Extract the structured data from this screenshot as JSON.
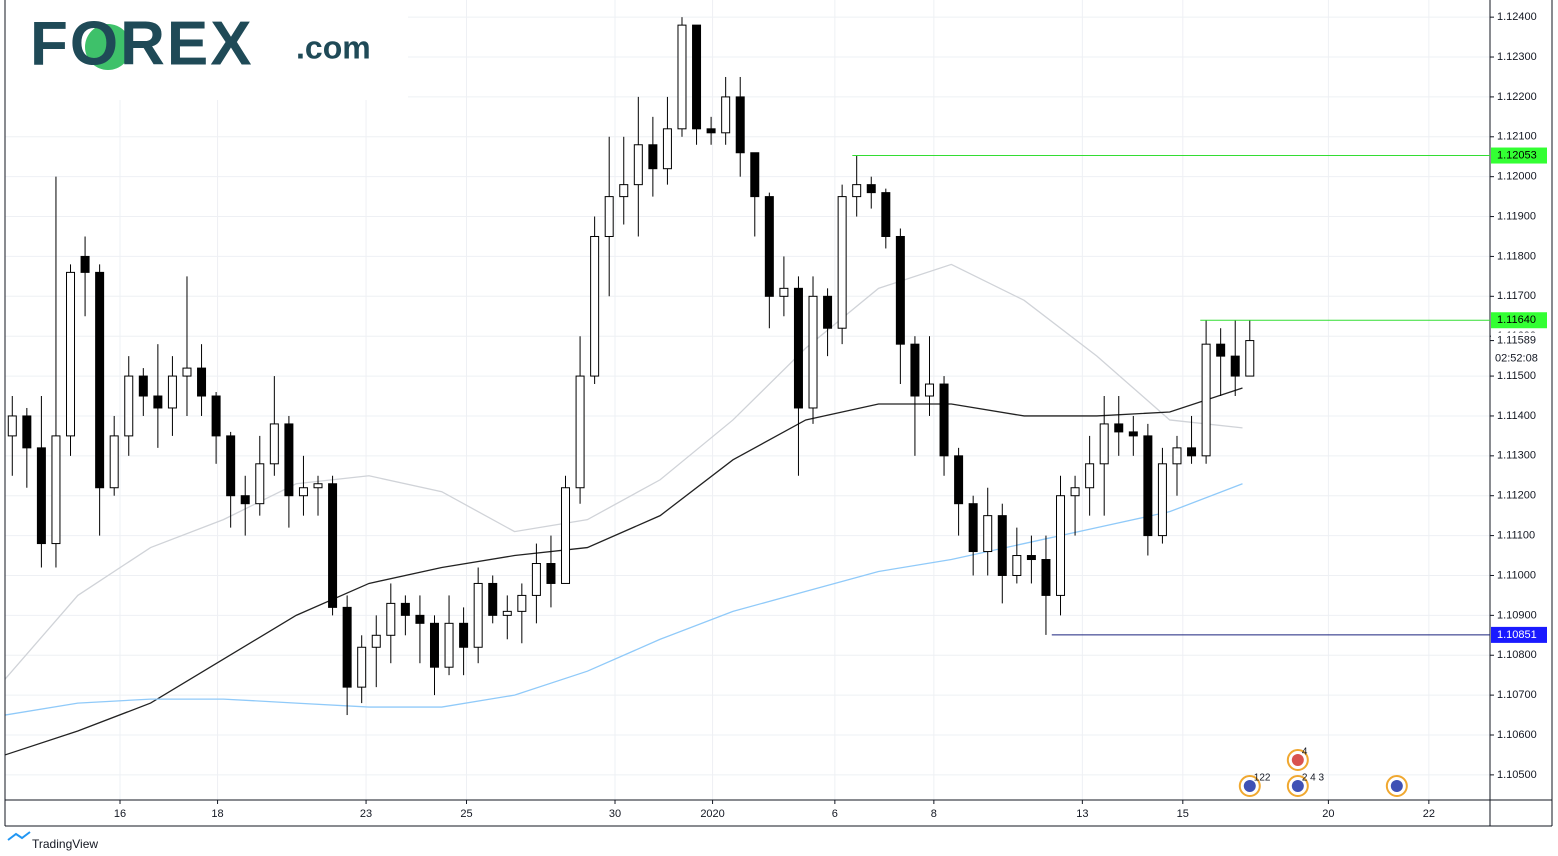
{
  "logo": {
    "brand": "FOREX",
    "suffix": ".com"
  },
  "footer": "TradingView",
  "chart_data": {
    "type": "candlestick",
    "x": [
      0.5,
      1.5,
      2.5,
      3.5,
      4.5,
      5.5,
      6.5,
      7.5,
      8.5,
      9.5,
      10.5,
      11.5,
      12.5,
      13.5,
      14.5,
      15.5,
      16.5,
      17.5,
      18.5,
      19.5,
      20.5,
      21.5,
      22.5,
      23.5,
      24.5,
      25.5,
      26.5,
      27.5,
      28.5,
      29.5,
      30.5,
      31.5,
      32.5,
      33.5,
      34.5,
      35.5,
      36.5,
      37.5,
      38.5,
      39.5,
      40.5,
      41.5,
      42.5,
      43.5,
      44.5,
      45.5,
      46.5,
      47.5,
      48.5,
      49.5,
      50.5,
      51.5,
      52.5,
      53.5,
      54.5,
      55.5,
      56.5,
      57.5,
      58.5,
      59.5,
      60.5,
      61.5,
      62.5,
      63.5,
      64.5,
      65.5,
      66.5,
      67.5,
      68.5,
      69.5,
      70.5,
      71.5,
      72.5,
      73.5,
      74.5,
      75.5,
      76.5,
      77.5,
      78.5,
      79.5,
      80.5,
      81.5,
      82.5,
      83.5,
      84.5,
      85.5
    ],
    "open": [
      1.1135,
      1.114,
      1.1132,
      1.1108,
      1.1135,
      1.118,
      1.1176,
      1.1122,
      1.1135,
      1.115,
      1.1145,
      1.1142,
      1.115,
      1.1152,
      1.1145,
      1.1135,
      1.112,
      1.1118,
      1.1128,
      1.1138,
      1.112,
      1.1122,
      1.1123,
      1.1092,
      1.1072,
      1.1082,
      1.1085,
      1.1093,
      1.109,
      1.1088,
      1.1077,
      1.1088,
      1.1082,
      1.1098,
      1.109,
      1.1091,
      1.1095,
      1.1103,
      1.1098,
      1.1122,
      1.115,
      1.1185,
      1.1195,
      1.1198,
      1.1208,
      1.1202,
      1.1212,
      1.1238,
      1.1212,
      1.1211,
      1.122,
      1.1206,
      1.1195,
      1.117,
      1.1172,
      1.1142,
      1.117,
      1.1162,
      1.1195,
      1.1198,
      1.1196,
      1.1185,
      1.1158,
      1.1145,
      1.1148,
      1.113,
      1.1118,
      1.1106,
      1.1115,
      1.11,
      1.1105,
      1.1104,
      1.1095,
      1.112,
      1.1122,
      1.1128,
      1.1138,
      1.1136,
      1.1135,
      1.111,
      1.1128,
      1.1132,
      1.113,
      1.1158,
      1.1155,
      1.115
    ],
    "high": [
      1.1145,
      1.1142,
      1.1145,
      1.12,
      1.1178,
      1.1185,
      1.1178,
      1.114,
      1.1155,
      1.1152,
      1.1158,
      1.1155,
      1.1175,
      1.1158,
      1.1146,
      1.1136,
      1.1125,
      1.1135,
      1.115,
      1.114,
      1.113,
      1.1125,
      1.1125,
      1.1095,
      1.1085,
      1.109,
      1.1098,
      1.1095,
      1.1095,
      1.109,
      1.1095,
      1.1092,
      1.1102,
      1.11,
      1.1095,
      1.1098,
      1.1108,
      1.111,
      1.1125,
      1.116,
      1.119,
      1.121,
      1.121,
      1.122,
      1.1215,
      1.122,
      1.124,
      1.1238,
      1.1215,
      1.1225,
      1.1225,
      1.1206,
      1.1196,
      1.118,
      1.1175,
      1.1175,
      1.1172,
      1.1198,
      1.12053,
      1.12,
      1.1197,
      1.1187,
      1.116,
      1.116,
      1.115,
      1.1132,
      1.112,
      1.1122,
      1.1118,
      1.1112,
      1.111,
      1.111,
      1.1125,
      1.1125,
      1.1135,
      1.1145,
      1.1145,
      1.114,
      1.1138,
      1.1132,
      1.1135,
      1.114,
      1.1164,
      1.1162,
      1.1164,
      1.1164
    ],
    "low": [
      1.1125,
      1.1122,
      1.1102,
      1.1102,
      1.113,
      1.1165,
      1.111,
      1.112,
      1.113,
      1.114,
      1.1132,
      1.1135,
      1.114,
      1.114,
      1.1128,
      1.1112,
      1.111,
      1.1115,
      1.1125,
      1.1112,
      1.1115,
      1.1115,
      1.109,
      1.1065,
      1.1068,
      1.1072,
      1.1078,
      1.1085,
      1.1078,
      1.107,
      1.1075,
      1.1075,
      1.1078,
      1.1088,
      1.1084,
      1.1083,
      1.1088,
      1.1092,
      1.1098,
      1.1118,
      1.1148,
      1.117,
      1.1188,
      1.1185,
      1.1195,
      1.1198,
      1.121,
      1.1208,
      1.1208,
      1.1208,
      1.12,
      1.1185,
      1.1162,
      1.1165,
      1.1125,
      1.1138,
      1.1155,
      1.1158,
      1.119,
      1.1192,
      1.1182,
      1.1148,
      1.113,
      1.114,
      1.1125,
      1.111,
      1.11,
      1.11,
      1.1093,
      1.1098,
      1.1098,
      1.10851,
      1.109,
      1.111,
      1.1115,
      1.1115,
      1.113,
      1.113,
      1.1105,
      1.1108,
      1.112,
      1.1128,
      1.1128,
      1.1145,
      1.1145,
      1.115
    ],
    "close": [
      1.114,
      1.1132,
      1.1108,
      1.1135,
      1.1176,
      1.1176,
      1.1122,
      1.1135,
      1.115,
      1.1145,
      1.1142,
      1.115,
      1.1152,
      1.1145,
      1.1135,
      1.112,
      1.1118,
      1.1128,
      1.1138,
      1.112,
      1.1122,
      1.1123,
      1.1092,
      1.1072,
      1.1082,
      1.1085,
      1.1093,
      1.109,
      1.1088,
      1.1077,
      1.1088,
      1.1082,
      1.1098,
      1.109,
      1.1091,
      1.1095,
      1.1103,
      1.1098,
      1.1122,
      1.115,
      1.1185,
      1.1195,
      1.1198,
      1.1208,
      1.1202,
      1.1212,
      1.1238,
      1.1212,
      1.1211,
      1.122,
      1.1206,
      1.1195,
      1.117,
      1.1172,
      1.1142,
      1.117,
      1.1162,
      1.1195,
      1.1198,
      1.1196,
      1.1185,
      1.1158,
      1.1145,
      1.1148,
      1.113,
      1.1118,
      1.1106,
      1.1115,
      1.11,
      1.1105,
      1.1104,
      1.1095,
      1.112,
      1.1122,
      1.1128,
      1.1138,
      1.1136,
      1.1135,
      1.111,
      1.1128,
      1.1132,
      1.113,
      1.1158,
      1.1155,
      1.115,
      1.11589
    ],
    "up_color": "#ffffff",
    "down_color": "#000000",
    "overlays": [
      {
        "color": "#d0d3d8",
        "x": [
          0,
          5,
          10,
          15,
          20,
          25,
          30,
          35,
          40,
          45,
          50,
          55,
          60,
          65,
          70,
          75,
          80,
          85
        ],
        "values": [
          1.1074,
          1.1095,
          1.1107,
          1.1114,
          1.1123,
          1.1125,
          1.1121,
          1.1111,
          1.1114,
          1.1124,
          1.1139,
          1.1157,
          1.1172,
          1.1178,
          1.1169,
          1.1155,
          1.1139,
          1.1137
        ]
      },
      {
        "color": "#222222",
        "x": [
          0,
          5,
          10,
          15,
          20,
          25,
          30,
          35,
          40,
          45,
          50,
          55,
          60,
          65,
          70,
          75,
          80,
          85
        ],
        "values": [
          1.1055,
          1.1061,
          1.1068,
          1.1079,
          1.109,
          1.1098,
          1.1102,
          1.1105,
          1.1107,
          1.1115,
          1.1129,
          1.1139,
          1.1143,
          1.1143,
          1.114,
          1.114,
          1.1141,
          1.1147
        ]
      },
      {
        "color": "#90caf9",
        "x": [
          0,
          5,
          10,
          15,
          20,
          25,
          30,
          35,
          40,
          45,
          50,
          55,
          60,
          65,
          70,
          75,
          80,
          85
        ],
        "values": [
          1.1065,
          1.1068,
          1.1069,
          1.1069,
          1.1068,
          1.1067,
          1.1067,
          1.107,
          1.1076,
          1.1084,
          1.1091,
          1.1096,
          1.1101,
          1.1104,
          1.1108,
          1.1112,
          1.1116,
          1.1123
        ]
      }
    ],
    "levels": [
      {
        "value": 1.12053,
        "x_start": 58.2,
        "color": "#33dd33",
        "box_color": "#33ff33",
        "text_color": "#000000"
      },
      {
        "value": 1.1164,
        "label": "1.11640",
        "x_start": 82.1,
        "color": "#33dd33",
        "box_color": "#33ff33",
        "text_color": "#000000"
      },
      {
        "value": 1.10851,
        "x_start": 71.9,
        "color": "#1a237e",
        "box_color": "#1a1aff",
        "text_color": "#ffffff"
      }
    ],
    "last_price": {
      "value": 1.11589,
      "countdown": "02:52:08"
    },
    "events": [
      {
        "x": 85.5,
        "label": "122"
      },
      {
        "x": 88.8,
        "label": "2 4 3"
      },
      {
        "x": 88.8,
        "label": "4",
        "row": 2
      },
      {
        "x": 95.6
      }
    ],
    "xlim": [
      0,
      102
    ],
    "xticks": [
      {
        "value": 7.9,
        "label": "16"
      },
      {
        "value": 14.6,
        "label": "18"
      },
      {
        "value": 24.8,
        "label": "23"
      },
      {
        "value": 31.7,
        "label": "25"
      },
      {
        "value": 41.9,
        "label": "30"
      },
      {
        "value": 48.6,
        "label": "2020"
      },
      {
        "value": 57.0,
        "label": "6"
      },
      {
        "value": 63.8,
        "label": "8"
      },
      {
        "value": 74.0,
        "label": "13"
      },
      {
        "value": 80.9,
        "label": "15"
      },
      {
        "value": 90.9,
        "label": "20"
      },
      {
        "value": 97.8,
        "label": "22"
      }
    ],
    "ylim": [
      1.10437,
      1.12443
    ],
    "yticks": [
      {
        "value": 1.124,
        "label": "1.12400"
      },
      {
        "value": 1.123,
        "label": "1.12300"
      },
      {
        "value": 1.122,
        "label": "1.12200"
      },
      {
        "value": 1.121,
        "label": "1.12100"
      },
      {
        "value": 1.12,
        "label": "1.12000"
      },
      {
        "value": 1.119,
        "label": "1.11900"
      },
      {
        "value": 1.118,
        "label": "1.11800"
      },
      {
        "value": 1.117,
        "label": "1.11700"
      },
      {
        "value": 1.116,
        "label": "1.11600"
      },
      {
        "value": 1.115,
        "label": "1.11500"
      },
      {
        "value": 1.114,
        "label": "1.11400"
      },
      {
        "value": 1.113,
        "label": "1.11300"
      },
      {
        "value": 1.112,
        "label": "1.11200"
      },
      {
        "value": 1.111,
        "label": "1.11100"
      },
      {
        "value": 1.11,
        "label": "1.11000"
      },
      {
        "value": 1.109,
        "label": "1.10900"
      },
      {
        "value": 1.108,
        "label": "1.10800"
      },
      {
        "value": 1.107,
        "label": "1.10700"
      },
      {
        "value": 1.106,
        "label": "1.10600"
      },
      {
        "value": 1.105,
        "label": "1.10500"
      }
    ],
    "grid": true
  }
}
